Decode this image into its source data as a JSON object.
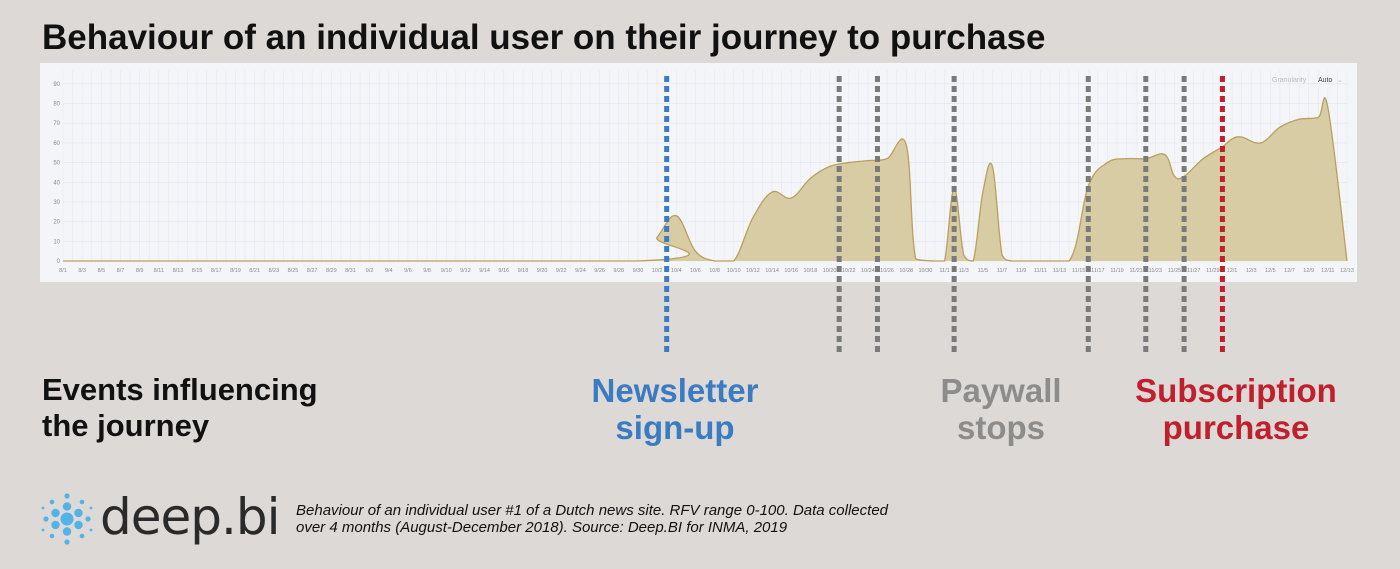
{
  "title": "Behaviour of an individual user on their journey to purchase",
  "granularity": {
    "label": "Granularity",
    "value": "Auto",
    "caret": "⌄"
  },
  "events_label": [
    "Events influencing",
    "the journey"
  ],
  "event_categories": [
    {
      "lines": [
        "Newsletter",
        "sign-up"
      ],
      "color": "#3a7bc2"
    },
    {
      "lines": [
        "Paywall",
        "stops"
      ],
      "color": "#8c8c8c"
    },
    {
      "lines": [
        "Subscription",
        "purchase"
      ],
      "color": "#c0202e"
    }
  ],
  "brand": "deep.bi",
  "caption": [
    "Behaviour of an  individual user #1 of a Dutch news site. RFV range 0-100. Data collected",
    "over 4 months (August-December 2018). Source: Deep.BI for INMA, 2019"
  ],
  "chart_data": {
    "type": "area",
    "y_ticks": [
      0,
      10,
      20,
      30,
      40,
      50,
      60,
      70,
      80,
      90
    ],
    "ylim": [
      0,
      95
    ],
    "x_tick_labels": [
      "8/1",
      "8/3",
      "8/5",
      "8/7",
      "8/9",
      "8/11",
      "8/13",
      "8/15",
      "8/17",
      "8/19",
      "8/21",
      "8/23",
      "8/25",
      "8/27",
      "8/29",
      "8/31",
      "9/2",
      "9/4",
      "9/6",
      "9/8",
      "9/10",
      "9/12",
      "9/14",
      "9/16",
      "9/18",
      "9/20",
      "9/22",
      "9/24",
      "9/26",
      "9/28",
      "9/30",
      "10/2",
      "10/4",
      "10/6",
      "10/8",
      "10/10",
      "10/12",
      "10/14",
      "10/16",
      "10/18",
      "10/20",
      "10/22",
      "10/24",
      "10/26",
      "10/28",
      "10/30",
      "11/1",
      "11/3",
      "11/5",
      "11/7",
      "11/9",
      "11/11",
      "11/13",
      "11/15",
      "11/17",
      "11/19",
      "11/21",
      "11/23",
      "11/25",
      "11/27",
      "11/29",
      "12/1",
      "12/3",
      "12/5",
      "12/7",
      "12/9",
      "12/11",
      "12/13"
    ],
    "x": [
      "8/1",
      "9/30",
      "10/2",
      "10/4",
      "10/6",
      "10/8",
      "10/10",
      "10/12",
      "10/14",
      "10/16",
      "10/18",
      "10/20",
      "10/22",
      "10/24",
      "10/26",
      "10/28",
      "10/29",
      "10/31",
      "11/1",
      "11/2",
      "11/3",
      "11/4",
      "11/5",
      "11/6",
      "11/7",
      "11/8",
      "11/10",
      "11/14",
      "11/16",
      "11/18",
      "11/20",
      "11/22",
      "11/24",
      "11/25",
      "11/26",
      "11/28",
      "11/30",
      "12/1",
      "12/2",
      "12/4",
      "12/6",
      "12/8",
      "12/10",
      "12/11",
      "12/13"
    ],
    "y": [
      0,
      0,
      12,
      23,
      5,
      0,
      0,
      22,
      35,
      32,
      42,
      48,
      50,
      51,
      52,
      59,
      1,
      0,
      0,
      37,
      3,
      0,
      35,
      48,
      3,
      0,
      0,
      0,
      38,
      50,
      52,
      52,
      54,
      43,
      43,
      52,
      58,
      62,
      63,
      60,
      68,
      72,
      73,
      78,
      0
    ],
    "color": "#b9a05c",
    "fill": "#d8cca4",
    "events": [
      {
        "date": "10/3",
        "type": "Newsletter sign-up"
      },
      {
        "date": "10/21",
        "type": "Paywall stops"
      },
      {
        "date": "10/25",
        "type": "Paywall stops"
      },
      {
        "date": "11/2",
        "type": "Paywall stops"
      },
      {
        "date": "11/16",
        "type": "Paywall stops"
      },
      {
        "date": "11/22",
        "type": "Paywall stops"
      },
      {
        "date": "11/26",
        "type": "Paywall stops"
      },
      {
        "date": "11/30",
        "type": "Subscription purchase"
      }
    ]
  }
}
